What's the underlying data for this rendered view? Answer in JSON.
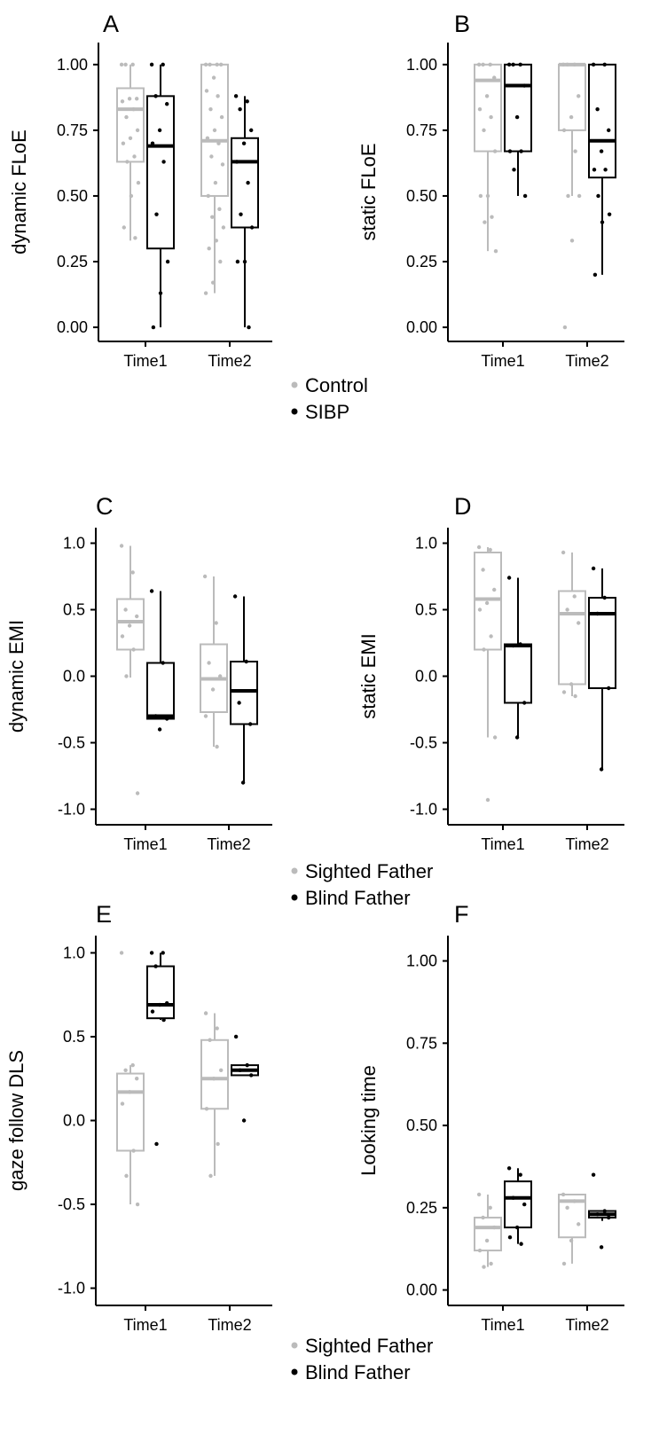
{
  "colors": {
    "group1": "#bbbbbb",
    "group2": "#000000"
  },
  "legends": [
    {
      "entries": [
        {
          "label": "Control",
          "color": "#bbbbbb"
        },
        {
          "label": "SIBP",
          "color": "#000000"
        }
      ]
    },
    {
      "entries": [
        {
          "label": "Sighted Father",
          "color": "#bbbbbb"
        },
        {
          "label": "Blind Father",
          "color": "#000000"
        }
      ]
    },
    {
      "entries": [
        {
          "label": "Sighted Father",
          "color": "#bbbbbb"
        },
        {
          "label": "Blind Father",
          "color": "#000000"
        }
      ]
    }
  ],
  "chart_data": [
    {
      "type": "box",
      "panel": "A",
      "ylabel": "dynamic FLoE",
      "categories": [
        "Time1",
        "Time2"
      ],
      "ylim": [
        -0.02,
        1.05
      ],
      "yticks": [
        0,
        0.25,
        0.5,
        0.75,
        1
      ],
      "ytick_labels": [
        "0.00",
        "0.25",
        "0.50",
        "0.75",
        "1.00"
      ],
      "series": [
        {
          "boxes": [
            {
              "whisker_low": 0.33,
              "q1": 0.63,
              "median": 0.83,
              "q3": 0.91,
              "whisker_high": 1.0,
              "points": [
                1.0,
                1.0,
                1.0,
                0.87,
                0.87,
                0.86,
                0.83,
                0.8,
                0.75,
                0.72,
                0.7,
                0.65,
                0.63,
                0.55,
                0.5,
                0.38,
                0.34
              ]
            },
            {
              "whisker_low": 0.13,
              "q1": 0.5,
              "median": 0.71,
              "q3": 1.0,
              "whisker_high": 1.0,
              "points": [
                1.0,
                1.0,
                1.0,
                1.0,
                0.95,
                0.9,
                0.88,
                0.83,
                0.8,
                0.75,
                0.72,
                0.7,
                0.65,
                0.62,
                0.55,
                0.5,
                0.45,
                0.42,
                0.38,
                0.33,
                0.3,
                0.25,
                0.17,
                0.13
              ]
            }
          ]
        },
        {
          "boxes": [
            {
              "whisker_low": 0.0,
              "q1": 0.3,
              "median": 0.69,
              "q3": 0.88,
              "whisker_high": 1.0,
              "points": [
                1.0,
                1.0,
                0.88,
                0.85,
                0.75,
                0.7,
                0.63,
                0.43,
                0.25,
                0.13,
                0.0
              ]
            },
            {
              "whisker_low": 0.0,
              "q1": 0.38,
              "median": 0.63,
              "q3": 0.72,
              "whisker_high": 0.88,
              "points": [
                0.88,
                0.86,
                0.83,
                0.75,
                0.7,
                0.63,
                0.55,
                0.43,
                0.38,
                0.25,
                0.25,
                0.0
              ]
            }
          ]
        }
      ]
    },
    {
      "type": "box",
      "panel": "B",
      "ylabel": "static FLoE",
      "categories": [
        "Time1",
        "Time2"
      ],
      "ylim": [
        -0.02,
        1.05
      ],
      "yticks": [
        0,
        0.25,
        0.5,
        0.75,
        1
      ],
      "ytick_labels": [
        "0.00",
        "0.25",
        "0.50",
        "0.75",
        "1.00"
      ],
      "series": [
        {
          "boxes": [
            {
              "whisker_low": 0.29,
              "q1": 0.67,
              "median": 0.94,
              "q3": 1.0,
              "whisker_high": 1.0,
              "points": [
                1.0,
                1.0,
                1.0,
                0.95,
                0.88,
                0.83,
                0.8,
                0.75,
                0.67,
                0.5,
                0.5,
                0.42,
                0.4,
                0.29
              ]
            },
            {
              "whisker_low": 0.5,
              "q1": 0.75,
              "median": 1.0,
              "q3": 1.0,
              "whisker_high": 1.0,
              "points": [
                1.0,
                1.0,
                1.0,
                0.88,
                0.8,
                0.75,
                0.67,
                0.5,
                0.5,
                0.33,
                0.0
              ]
            }
          ]
        },
        {
          "boxes": [
            {
              "whisker_low": 0.5,
              "q1": 0.67,
              "median": 0.92,
              "q3": 1.0,
              "whisker_high": 1.0,
              "points": [
                1.0,
                1.0,
                1.0,
                0.92,
                0.8,
                0.67,
                0.67,
                0.6,
                0.5
              ]
            },
            {
              "whisker_low": 0.2,
              "q1": 0.57,
              "median": 0.71,
              "q3": 1.0,
              "whisker_high": 1.0,
              "points": [
                1.0,
                1.0,
                0.83,
                0.75,
                0.67,
                0.6,
                0.6,
                0.5,
                0.43,
                0.4,
                0.2
              ]
            }
          ]
        }
      ]
    },
    {
      "type": "box",
      "panel": "C",
      "ylabel": "dynamic EMI",
      "categories": [
        "Time1",
        "Time2"
      ],
      "ylim": [
        -1.05,
        1.05
      ],
      "yticks": [
        -1,
        -0.5,
        0,
        0.5,
        1
      ],
      "ytick_labels": [
        "-1.0",
        "-0.5",
        "0.0",
        "0.5",
        "1.0"
      ],
      "series": [
        {
          "boxes": [
            {
              "whisker_low": -0.01,
              "q1": 0.2,
              "median": 0.41,
              "q3": 0.58,
              "whisker_high": 0.98,
              "points": [
                0.98,
                0.78,
                0.5,
                0.45,
                0.38,
                0.3,
                0.2,
                0.0,
                -0.88
              ]
            },
            {
              "whisker_low": -0.53,
              "q1": -0.27,
              "median": -0.02,
              "q3": 0.24,
              "whisker_high": 0.75,
              "points": [
                0.75,
                0.4,
                0.1,
                0.0,
                -0.1,
                -0.3,
                -0.53
              ]
            }
          ]
        },
        {
          "boxes": [
            {
              "whisker_low": -0.32,
              "q1": -0.32,
              "median": -0.3,
              "q3": 0.1,
              "whisker_high": 0.64,
              "points": [
                0.64,
                0.1,
                -0.3,
                -0.32,
                -0.4
              ]
            },
            {
              "whisker_low": -0.8,
              "q1": -0.36,
              "median": -0.11,
              "q3": 0.11,
              "whisker_high": 0.6,
              "points": [
                0.6,
                0.11,
                -0.2,
                -0.36,
                -0.8
              ]
            }
          ]
        }
      ]
    },
    {
      "type": "box",
      "panel": "D",
      "ylabel": "static EMI",
      "categories": [
        "Time1",
        "Time2"
      ],
      "ylim": [
        -1.05,
        1.05
      ],
      "yticks": [
        -1,
        -0.5,
        0,
        0.5,
        1
      ],
      "ytick_labels": [
        "-1.0",
        "-0.5",
        "0.0",
        "0.5",
        "1.0"
      ],
      "series": [
        {
          "boxes": [
            {
              "whisker_low": -0.46,
              "q1": 0.2,
              "median": 0.58,
              "q3": 0.93,
              "whisker_high": 0.97,
              "points": [
                0.97,
                0.95,
                0.8,
                0.65,
                0.55,
                0.5,
                0.3,
                0.2,
                -0.46,
                -0.93
              ]
            },
            {
              "whisker_low": -0.15,
              "q1": -0.06,
              "median": 0.47,
              "q3": 0.64,
              "whisker_high": 0.93,
              "points": [
                0.93,
                0.6,
                0.5,
                0.4,
                -0.06,
                -0.12,
                -0.15
              ]
            }
          ]
        },
        {
          "boxes": [
            {
              "whisker_low": -0.46,
              "q1": -0.2,
              "median": 0.23,
              "q3": 0.24,
              "whisker_high": 0.74,
              "points": [
                0.74,
                0.24,
                0.23,
                -0.2,
                -0.46
              ]
            },
            {
              "whisker_low": -0.7,
              "q1": -0.09,
              "median": 0.47,
              "q3": 0.59,
              "whisker_high": 0.81,
              "points": [
                0.81,
                0.59,
                0.47,
                -0.09,
                -0.7
              ]
            }
          ]
        }
      ]
    },
    {
      "type": "box",
      "panel": "E",
      "ylabel": "gaze follow DLS",
      "categories": [
        "Time1",
        "Time2"
      ],
      "ylim": [
        -1.05,
        1.05
      ],
      "yticks": [
        -1,
        -0.5,
        0,
        0.5,
        1
      ],
      "ytick_labels": [
        "-1.0",
        "-0.5",
        "0.0",
        "0.5",
        "1.0"
      ],
      "series": [
        {
          "boxes": [
            {
              "whisker_low": -0.5,
              "q1": -0.18,
              "median": 0.17,
              "q3": 0.28,
              "whisker_high": 0.33,
              "points": [
                1.0,
                0.33,
                0.3,
                0.25,
                0.17,
                0.1,
                -0.18,
                -0.33,
                -0.5
              ]
            },
            {
              "whisker_low": -0.33,
              "q1": 0.07,
              "median": 0.25,
              "q3": 0.48,
              "whisker_high": 0.64,
              "points": [
                0.64,
                0.55,
                0.48,
                0.3,
                0.25,
                0.07,
                -0.14,
                -0.33
              ]
            }
          ]
        },
        {
          "boxes": [
            {
              "whisker_low": 0.6,
              "q1": 0.61,
              "median": 0.69,
              "q3": 0.92,
              "whisker_high": 1.0,
              "points": [
                1.0,
                1.0,
                0.92,
                0.7,
                0.69,
                0.65,
                0.6,
                -0.14
              ]
            },
            {
              "whisker_low": 0.27,
              "q1": 0.27,
              "median": 0.3,
              "q3": 0.33,
              "whisker_high": 0.33,
              "points": [
                0.5,
                0.33,
                0.3,
                0.27,
                0.0
              ]
            }
          ]
        }
      ]
    },
    {
      "type": "box",
      "panel": "F",
      "ylabel": "Looking time",
      "categories": [
        "Time1",
        "Time2"
      ],
      "ylim": [
        -0.02,
        1.05
      ],
      "yticks": [
        0,
        0.25,
        0.5,
        0.75,
        1
      ],
      "ytick_labels": [
        "0.00",
        "0.25",
        "0.50",
        "0.75",
        "1.00"
      ],
      "series": [
        {
          "boxes": [
            {
              "whisker_low": 0.07,
              "q1": 0.12,
              "median": 0.19,
              "q3": 0.22,
              "whisker_high": 0.29,
              "points": [
                0.29,
                0.25,
                0.22,
                0.19,
                0.15,
                0.12,
                0.08,
                0.07
              ]
            },
            {
              "whisker_low": 0.08,
              "q1": 0.16,
              "median": 0.27,
              "q3": 0.29,
              "whisker_high": 0.29,
              "points": [
                0.29,
                0.27,
                0.25,
                0.2,
                0.15,
                0.08
              ]
            }
          ]
        },
        {
          "boxes": [
            {
              "whisker_low": 0.14,
              "q1": 0.19,
              "median": 0.28,
              "q3": 0.33,
              "whisker_high": 0.37,
              "points": [
                0.37,
                0.35,
                0.28,
                0.26,
                0.19,
                0.16,
                0.14
              ]
            },
            {
              "whisker_low": 0.21,
              "q1": 0.22,
              "median": 0.23,
              "q3": 0.24,
              "whisker_high": 0.24,
              "points": [
                0.35,
                0.24,
                0.23,
                0.22,
                0.13
              ]
            }
          ]
        }
      ]
    }
  ]
}
